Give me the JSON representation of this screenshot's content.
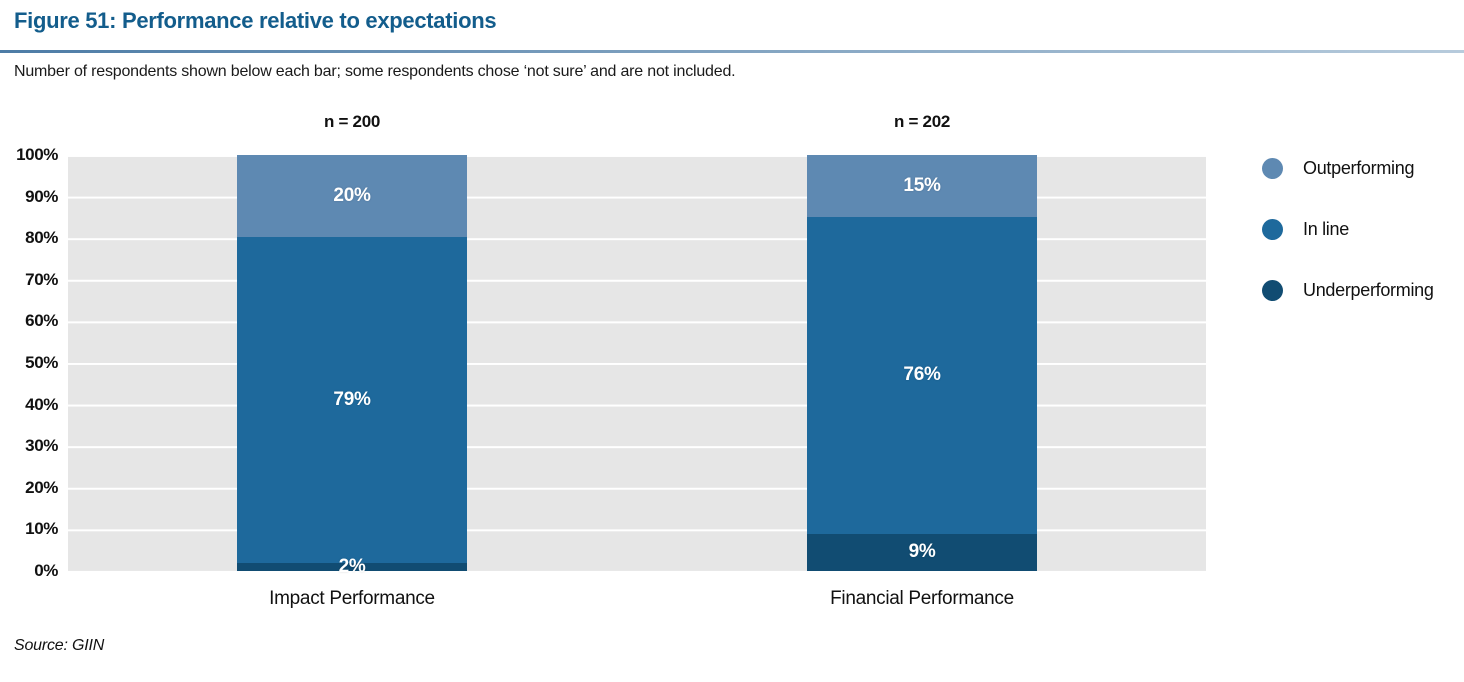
{
  "figure": {
    "title": "Figure 51: Performance relative to expectations",
    "subtitle": "Number of respondents shown below each bar; some respondents chose ‘not sure’ and are not included.",
    "source": "Source: GIIN"
  },
  "chart_data": {
    "type": "bar",
    "stacked": true,
    "orientation": "vertical",
    "title": "Figure 51: Performance relative to expectations",
    "categories": [
      "Impact Performance",
      "Financial Performance"
    ],
    "n_labels": [
      "n = 200",
      "n = 202"
    ],
    "series": [
      {
        "name": "Outperforming",
        "color": "#5e89b2",
        "values": [
          20,
          15
        ]
      },
      {
        "name": "In line",
        "color": "#1e699c",
        "values": [
          79,
          76
        ]
      },
      {
        "name": "Underperforming",
        "color": "#114c72",
        "values": [
          2,
          9
        ]
      }
    ],
    "value_labels": [
      [
        "20%",
        "79%",
        "2%"
      ],
      [
        "15%",
        "76%",
        "9%"
      ]
    ],
    "value_suffix": "%",
    "xlabel": "",
    "ylabel": "",
    "ylim": [
      0,
      100
    ],
    "yticks": [
      "100%",
      "90%",
      "80%",
      "70%",
      "60%",
      "50%",
      "40%",
      "30%",
      "20%",
      "10%",
      "0%"
    ],
    "grid": true,
    "legend_position": "right",
    "legend_entries": [
      "Outperforming",
      "In line",
      "Underperforming"
    ]
  },
  "theme": {
    "title_color": "#135d8c",
    "rule_color_left": "#4d7ca6",
    "rule_color_right": "#b7cbdc",
    "plot_background": "#e6e6e6",
    "gridline_color": "#ffffff",
    "text_color": "#111111"
  }
}
